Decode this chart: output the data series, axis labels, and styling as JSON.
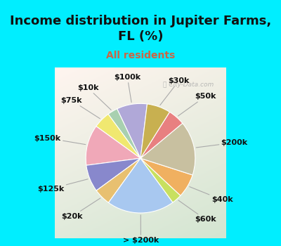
{
  "title": "Income distribution in Jupiter Farms,\nFL (%)",
  "subtitle": "All residents",
  "watermark": "ⓘ City-Data.com",
  "slices": [
    {
      "label": "$100k",
      "value": 9,
      "color": "#b0a8d8"
    },
    {
      "label": "$10k",
      "value": 3,
      "color": "#a8d0b0"
    },
    {
      "label": "$75k",
      "value": 5,
      "color": "#f0e870"
    },
    {
      "label": "$150k",
      "value": 12,
      "color": "#f0a8b8"
    },
    {
      "label": "$125k",
      "value": 8,
      "color": "#8888cc"
    },
    {
      "label": "$20k",
      "value": 5,
      "color": "#e8c070"
    },
    {
      "label": "> $200k",
      "value": 20,
      "color": "#a8c8f0"
    },
    {
      "label": "$60k",
      "value": 3,
      "color": "#c8e060"
    },
    {
      "label": "$40k",
      "value": 7,
      "color": "#f0b060"
    },
    {
      "label": "$200k",
      "value": 16,
      "color": "#c8c0a0"
    },
    {
      "label": "$50k",
      "value": 5,
      "color": "#e88080"
    },
    {
      "label": "$30k",
      "value": 7,
      "color": "#c8b050"
    }
  ],
  "bg_cyan": "#00eeff",
  "bg_chart_tl": "#d0ece0",
  "bg_chart_tr": "#e8f4f8",
  "title_fontsize": 13,
  "subtitle_fontsize": 10,
  "subtitle_color": "#cc6644",
  "label_fontsize": 8,
  "startangle": 83
}
